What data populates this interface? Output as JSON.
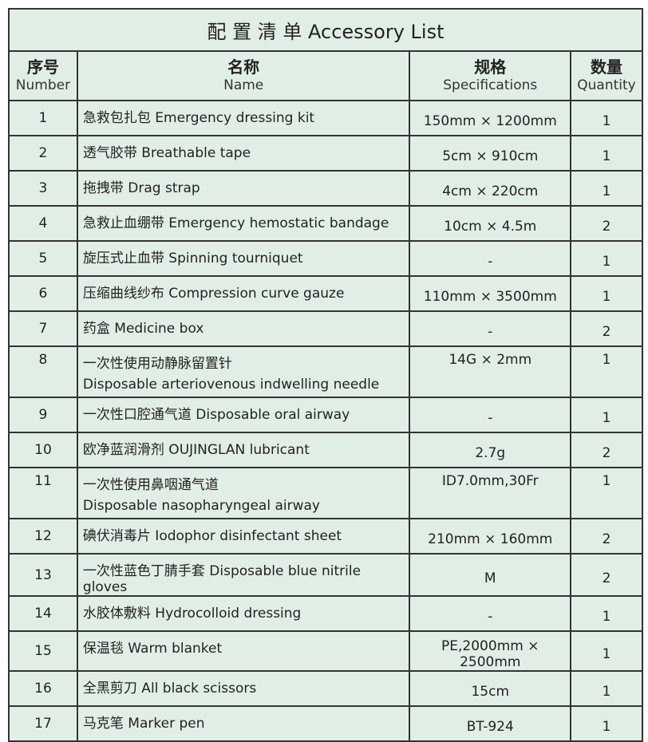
{
  "title": "配 置 清 单  Accessory List",
  "headers": [
    {
      "zh": "序号",
      "en": "Number"
    },
    {
      "zh": "名称",
      "en": "Name"
    },
    {
      "zh": "规格",
      "en": "Specifications"
    },
    {
      "zh": "数量",
      "en": "Quantity"
    }
  ],
  "rows": [
    {
      "no": "1",
      "name": "急救包扎包 Emergency dressing kit",
      "name2": "",
      "spec": "150mm × 1200mm",
      "qty": "1"
    },
    {
      "no": "2",
      "name": "透气胶带 Breathable tape",
      "name2": "",
      "spec": "5cm × 910cm",
      "qty": "1"
    },
    {
      "no": "3",
      "name": "拖拽带 Drag strap",
      "name2": "",
      "spec": "4cm × 220cm",
      "qty": "1"
    },
    {
      "no": "4",
      "name": "急救止血绷带 Emergency hemostatic bandage",
      "name2": "",
      "spec": "10cm × 4.5m",
      "qty": "2"
    },
    {
      "no": "5",
      "name": "旋压式止血带 Spinning tourniquet",
      "name2": "",
      "spec": "-",
      "qty": "1"
    },
    {
      "no": "6",
      "name": "压缩曲线纱布 Compression curve gauze",
      "name2": "",
      "spec": "110mm × 3500mm",
      "qty": "1"
    },
    {
      "no": "7",
      "name": "药盒 Medicine box",
      "name2": "",
      "spec": "-",
      "qty": "2"
    },
    {
      "no": "8",
      "name": "一次性使用动静脉留置针",
      "name2": "Disposable arteriovenous indwelling needle",
      "spec": "14G × 2mm",
      "qty": "1"
    },
    {
      "no": "9",
      "name": "一次性口腔通气道 Disposable oral airway",
      "name2": "",
      "spec": "-",
      "qty": "1"
    },
    {
      "no": "10",
      "name": "欧净蓝润滑剂 OUJINGLAN lubricant",
      "name2": "",
      "spec": "2.7g",
      "qty": "2"
    },
    {
      "no": "11",
      "name": "一次性使用鼻咽通气道",
      "name2": "Disposable nasopharyngeal airway",
      "spec": "ID7.0mm,30Fr",
      "qty": "1"
    },
    {
      "no": "12",
      "name": "碘伏消毒片 Iodophor disinfectant sheet",
      "name2": "",
      "spec": "210mm × 160mm",
      "qty": "2"
    },
    {
      "no": "13",
      "name": "一次性蓝色丁腈手套 Disposable blue nitrile gloves",
      "name2": "",
      "spec": "M",
      "qty": "2"
    },
    {
      "no": "14",
      "name": "水胶体敷料 Hydrocolloid dressing",
      "name2": "",
      "spec": "-",
      "qty": "1"
    },
    {
      "no": "15",
      "name": "保温毯 Warm blanket",
      "name2": "",
      "spec": "PE,2000mm × 2500mm",
      "qty": "1"
    },
    {
      "no": "16",
      "name": "全黑剪刀 All black scissors",
      "name2": "",
      "spec": "15cm",
      "qty": "1"
    },
    {
      "no": "17",
      "name": "马克笔 Marker pen",
      "name2": "",
      "spec": "BT-924",
      "qty": "1"
    }
  ]
}
